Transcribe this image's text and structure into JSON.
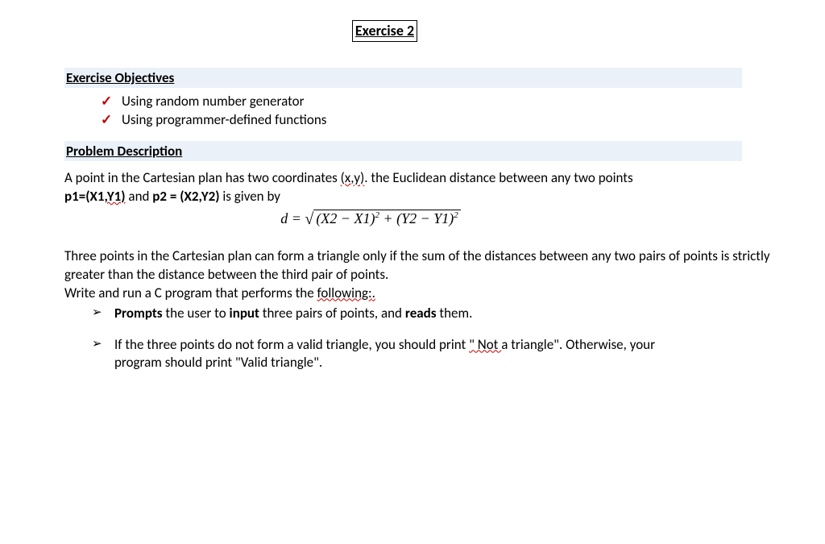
{
  "title": "Exercise 2",
  "section1": {
    "header": "Exercise Objectives",
    "items": [
      "Using random number generator",
      "Using programmer-defined functions"
    ]
  },
  "section2": {
    "header": "Problem Description",
    "intro_a": "A point in the Cartesian plan has two coordinates ",
    "intro_xy": "(x,y)",
    "intro_b": ".  the Euclidean distance between any two points ",
    "intro_p1a": "p1=(X1",
    "intro_p1b": ",Y1)",
    "intro_and": " and ",
    "intro_p2": "p2 = (X2,Y2)",
    "intro_c": " is given by",
    "formula_lhs": "d = ",
    "formula_rhs_part1": "(X2 − X1)",
    "formula_rhs_part2": " + (Y2 − Y1)",
    "body2_a": "Three points in the Cartesian plan can form a triangle only if the sum of the distances between any two pairs of points is strictly greater than the distance between the third pair of points.",
    "body2_b": "Write and run a C program that performs the ",
    "body2_following": "following:",
    "body2_dot": ".",
    "bullets": [
      {
        "pre": "",
        "b1": "Prompts",
        "mid1": " the user to ",
        "b2": "input",
        "mid2": " three pairs of points, and ",
        "b3": "reads",
        "post": " them.",
        "wavy": ""
      },
      {
        "pre": "If the three points do not form a valid triangle, you should print ",
        "quote1": "\"",
        "wavy": " Not ",
        "post": " a triangle\". Otherwise, your program should print \"Valid triangle\"."
      }
    ]
  },
  "glyphs": {
    "check": "✓",
    "arrow": "➢",
    "sqrt": "√"
  },
  "colors": {
    "accent": "#c00000",
    "header_bg": "#eaf1f9"
  }
}
